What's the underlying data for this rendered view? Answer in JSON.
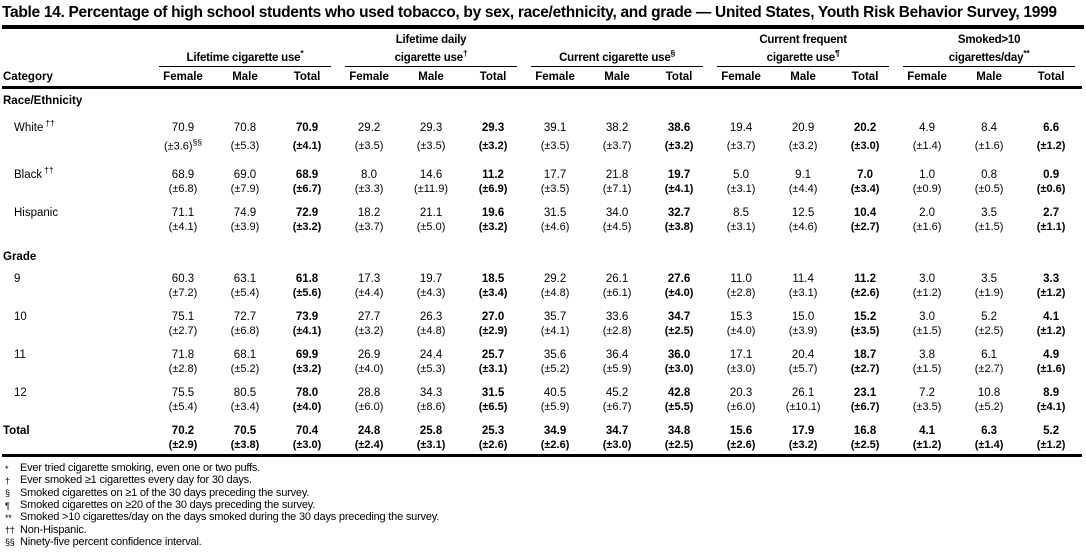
{
  "title": "Table 14. Percentage of high school students who used tobacco, by sex, race/ethnicity, and grade — United States, Youth Risk Behavior Survey, 1999",
  "table": {
    "category_header": "Category",
    "col_headers": [
      "Female",
      "Male",
      "Total"
    ],
    "groups": [
      {
        "lines": [
          "Lifetime cigarette use"
        ],
        "marker": "*"
      },
      {
        "lines": [
          "Lifetime daily",
          "cigarette use"
        ],
        "marker": "†"
      },
      {
        "lines": [
          "Current cigarette use"
        ],
        "marker": "§"
      },
      {
        "lines": [
          "Current frequent",
          "cigarette use"
        ],
        "marker": "¶"
      },
      {
        "lines": [
          "Smoked>10",
          "cigarettes/day"
        ],
        "marker": "**"
      }
    ],
    "rows": [
      {
        "type": "section",
        "label": "Race/Ethnicity"
      },
      {
        "type": "data",
        "label": "White",
        "label_sup": "††",
        "indent": true,
        "values": [
          "70.9",
          "70.8",
          "70.9",
          "29.2",
          "29.3",
          "29.3",
          "39.1",
          "38.2",
          "38.6",
          "19.4",
          "20.9",
          "20.2",
          "4.9",
          "8.4",
          "6.6"
        ],
        "cis": [
          "(±3.6)",
          "(±5.3)",
          "(±4.1)",
          "(±3.5)",
          "(±3.5)",
          "(±3.2)",
          "(±3.5)",
          "(±3.7)",
          "(±3.2)",
          "(±3.7)",
          "(±3.2)",
          "(±3.0)",
          "(±1.4)",
          "(±1.6)",
          "(±1.2)"
        ],
        "ci0_sup": "§§"
      },
      {
        "type": "data",
        "label": "Black",
        "label_sup": "††",
        "indent": true,
        "values": [
          "68.9",
          "69.0",
          "68.9",
          "8.0",
          "14.6",
          "11.2",
          "17.7",
          "21.8",
          "19.7",
          "5.0",
          "9.1",
          "7.0",
          "1.0",
          "0.8",
          "0.9"
        ],
        "cis": [
          "(±6.8)",
          "(±7.9)",
          "(±6.7)",
          "(±3.3)",
          "(±11.9)",
          "(±6.9)",
          "(±3.5)",
          "(±7.1)",
          "(±4.1)",
          "(±3.1)",
          "(±4.4)",
          "(±3.4)",
          "(±0.9)",
          "(±0.5)",
          "(±0.6)"
        ]
      },
      {
        "type": "data",
        "label": "Hispanic",
        "indent": true,
        "values": [
          "71.1",
          "74.9",
          "72.9",
          "18.2",
          "21.1",
          "19.6",
          "31.5",
          "34.0",
          "32.7",
          "8.5",
          "12.5",
          "10.4",
          "2.0",
          "3.5",
          "2.7"
        ],
        "cis": [
          "(±4.1)",
          "(±3.9)",
          "(±3.2)",
          "(±3.7)",
          "(±5.0)",
          "(±3.2)",
          "(±4.6)",
          "(±4.5)",
          "(±3.8)",
          "(±3.1)",
          "(±4.6)",
          "(±2.7)",
          "(±1.6)",
          "(±1.5)",
          "(±1.1)"
        ]
      },
      {
        "type": "section",
        "label": "Grade"
      },
      {
        "type": "data",
        "label": "9",
        "indent": true,
        "values": [
          "60.3",
          "63.1",
          "61.8",
          "17.3",
          "19.7",
          "18.5",
          "29.2",
          "26.1",
          "27.6",
          "11.0",
          "11.4",
          "11.2",
          "3.0",
          "3.5",
          "3.3"
        ],
        "cis": [
          "(±7.2)",
          "(±5.4)",
          "(±5.6)",
          "(±4.4)",
          "(±4.3)",
          "(±3.4)",
          "(±4.8)",
          "(±6.1)",
          "(±4.0)",
          "(±2.8)",
          "(±3.1)",
          "(±2.6)",
          "(±1.2)",
          "(±1.9)",
          "(±1.2)"
        ]
      },
      {
        "type": "data",
        "label": "10",
        "indent": true,
        "values": [
          "75.1",
          "72.7",
          "73.9",
          "27.7",
          "26.3",
          "27.0",
          "35.7",
          "33.6",
          "34.7",
          "15.3",
          "15.0",
          "15.2",
          "3.0",
          "5.2",
          "4.1"
        ],
        "cis": [
          "(±2.7)",
          "(±6.8)",
          "(±4.1)",
          "(±3.2)",
          "(±4.8)",
          "(±2.9)",
          "(±4.1)",
          "(±2.8)",
          "(±2.5)",
          "(±4.0)",
          "(±3.9)",
          "(±3.5)",
          "(±1.5)",
          "(±2.5)",
          "(±1.2)"
        ]
      },
      {
        "type": "data",
        "label": "11",
        "indent": true,
        "values": [
          "71.8",
          "68.1",
          "69.9",
          "26.9",
          "24.4",
          "25.7",
          "35.6",
          "36.4",
          "36.0",
          "17.1",
          "20.4",
          "18.7",
          "3.8",
          "6.1",
          "4.9"
        ],
        "cis": [
          "(±2.8)",
          "(±5.2)",
          "(±3.2)",
          "(±4.0)",
          "(±5.3)",
          "(±3.1)",
          "(±5.2)",
          "(±5.9)",
          "(±3.0)",
          "(±3.0)",
          "(±5.7)",
          "(±2.7)",
          "(±1.5)",
          "(±2.7)",
          "(±1.6)"
        ]
      },
      {
        "type": "data",
        "label": "12",
        "indent": true,
        "values": [
          "75.5",
          "80.5",
          "78.0",
          "28.8",
          "34.3",
          "31.5",
          "40.5",
          "45.2",
          "42.8",
          "20.3",
          "26.1",
          "23.1",
          "7.2",
          "10.8",
          "8.9"
        ],
        "cis": [
          "(±5.4)",
          "(±3.4)",
          "(±4.0)",
          "(±6.0)",
          "(±8.6)",
          "(±6.5)",
          "(±5.9)",
          "(±6.7)",
          "(±5.5)",
          "(±6.0)",
          "(±10.1)",
          "(±6.7)",
          "(±3.5)",
          "(±5.2)",
          "(±4.1)"
        ]
      },
      {
        "type": "data",
        "label": "Total",
        "bold": true,
        "values": [
          "70.2",
          "70.5",
          "70.4",
          "24.8",
          "25.8",
          "25.3",
          "34.9",
          "34.7",
          "34.8",
          "15.6",
          "17.9",
          "16.8",
          "4.1",
          "6.3",
          "5.2"
        ],
        "cis": [
          "(±2.9)",
          "(±3.8)",
          "(±3.0)",
          "(±2.4)",
          "(±3.1)",
          "(±2.6)",
          "(±2.6)",
          "(±3.0)",
          "(±2.5)",
          "(±2.6)",
          "(±3.2)",
          "(±2.5)",
          "(±1.2)",
          "(±1.4)",
          "(±1.2)"
        ]
      }
    ]
  },
  "footnotes": [
    {
      "marker": "*",
      "text": "Ever tried cigarette smoking, even one or two puffs."
    },
    {
      "marker": "†",
      "text": "Ever smoked ≥1 cigarettes every day for 30 days."
    },
    {
      "marker": "§",
      "text": "Smoked cigarettes on ≥1 of the 30 days preceding the survey."
    },
    {
      "marker": "¶",
      "text": "Smoked cigarettes on ≥20 of the 30 days preceding the survey."
    },
    {
      "marker": "**",
      "text": "Smoked >10 cigarettes/day on the days smoked during the 30 days preceding the survey."
    },
    {
      "marker": "††",
      "text": "Non-Hispanic."
    },
    {
      "marker": "§§",
      "text": "Ninety-five percent confidence interval."
    }
  ]
}
